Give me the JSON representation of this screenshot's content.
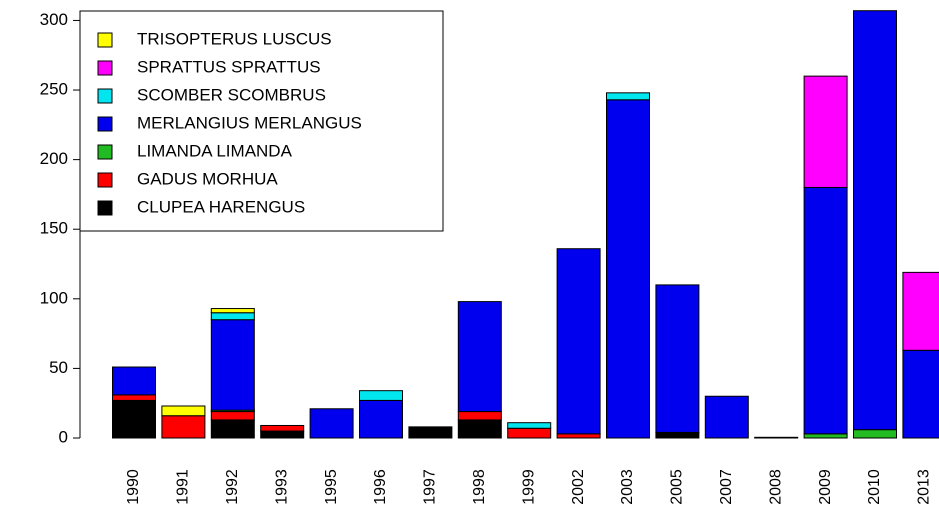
{
  "chart_data": {
    "type": "stacked_bar",
    "categories": [
      "1990",
      "1991",
      "1992",
      "1993",
      "1995",
      "1996",
      "1997",
      "1998",
      "1999",
      "2002",
      "2003",
      "2005",
      "2007",
      "2008",
      "2009",
      "2010",
      "2013"
    ],
    "ylim": [
      0,
      307.5
    ],
    "yticks": [
      0,
      50,
      100,
      150,
      200,
      250,
      300
    ],
    "legend": "top-left",
    "series": [
      {
        "name": "CLUPEA HARENGUS",
        "color": "#000000",
        "values": [
          27,
          0,
          13,
          5,
          0,
          0,
          8,
          13,
          0,
          0,
          0,
          4,
          0,
          0,
          0,
          0,
          0
        ]
      },
      {
        "name": "GADUS MORHUA",
        "color": "#ff0000",
        "values": [
          4,
          16,
          6,
          4,
          0,
          0,
          0,
          6,
          7,
          3,
          0,
          0,
          0,
          0,
          0,
          0,
          0
        ]
      },
      {
        "name": "LIMANDA LIMANDA",
        "color": "#22bb22",
        "values": [
          0,
          0,
          1,
          0,
          0,
          0,
          0,
          0,
          0,
          0,
          0,
          0,
          0,
          0,
          3,
          6,
          0
        ]
      },
      {
        "name": "MERLANGIUS MERLANGUS",
        "color": "#0000ee",
        "values": [
          20,
          0,
          65,
          0,
          21,
          27,
          0,
          79,
          0,
          133,
          243,
          106,
          30,
          0.5,
          177,
          301,
          63
        ]
      },
      {
        "name": "SCOMBER SCOMBRUS",
        "color": "#00e5ee",
        "values": [
          0,
          0,
          5,
          0,
          0,
          7,
          0,
          0,
          4,
          0,
          5,
          0,
          0,
          0,
          0,
          0,
          0
        ]
      },
      {
        "name": "SPRATTUS SPRATTUS",
        "color": "#ff00ff",
        "values": [
          0,
          0,
          0,
          0,
          0,
          0,
          0,
          0,
          0,
          0,
          0,
          0,
          0,
          0,
          80,
          0,
          56
        ]
      },
      {
        "name": "TRISOPTERUS LUSCUS",
        "color": "#ffff00",
        "values": [
          0,
          7,
          3,
          0,
          0,
          0,
          0,
          0,
          0,
          0,
          0,
          0,
          0,
          0,
          0,
          0,
          0
        ]
      }
    ]
  }
}
